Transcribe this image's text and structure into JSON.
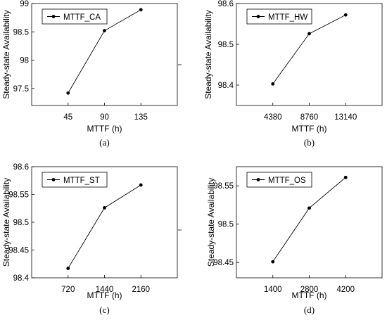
{
  "chart_data": [
    {
      "type": "line",
      "panel_label": "(a)",
      "x": [
        45,
        90,
        135
      ],
      "xticks": [
        "45",
        "90",
        "135"
      ],
      "series": [
        {
          "name": "MTTF_CA",
          "values": [
            97.42,
            98.52,
            98.89
          ]
        }
      ],
      "xlabel": "MTTF (h)",
      "ylabel": "Steady-state Availability",
      "yticks": [
        "97.5",
        "98",
        "98.5",
        "99"
      ],
      "ylim": [
        97.2,
        99.0
      ],
      "grid": false,
      "legend": "top-left"
    },
    {
      "type": "line",
      "panel_label": "(b)",
      "x": [
        4380,
        8760,
        13140
      ],
      "xticks": [
        "4380",
        "8760",
        "13140"
      ],
      "series": [
        {
          "name": "MTTF_HW",
          "values": [
            98.403,
            98.526,
            98.572
          ]
        }
      ],
      "xlabel": "MTTF (h)",
      "ylabel": "Steady-state Availability",
      "yticks": [
        "98.4",
        "98.5",
        "98.6"
      ],
      "ylim": [
        98.35,
        98.6
      ],
      "grid": false,
      "legend": "top-left"
    },
    {
      "type": "line",
      "panel_label": "(c)",
      "x": [
        720,
        1440,
        2160
      ],
      "xticks": [
        "720",
        "1440",
        "2160"
      ],
      "series": [
        {
          "name": "MTTF_ST",
          "values": [
            98.417,
            98.526,
            98.567
          ]
        }
      ],
      "xlabel": "MTTF (h)",
      "ylabel": "Steady-state Availability",
      "yticks": [
        "98.4",
        "98.45",
        "98.5",
        "98.55",
        "98.6"
      ],
      "ylim": [
        98.4,
        98.6
      ],
      "grid": false,
      "legend": "top-left"
    },
    {
      "type": "line",
      "panel_label": "(d)",
      "x": [
        1400,
        2800,
        4200
      ],
      "xticks": [
        "1400",
        "2800",
        "4200"
      ],
      "series": [
        {
          "name": "MTTF_OS",
          "values": [
            98.451,
            98.521,
            98.561
          ]
        }
      ],
      "xlabel": "MTTF (h)",
      "ylabel": "Steady-state Availability",
      "yticks": [
        "98.45",
        "98.5",
        "98.55"
      ],
      "ylim": [
        98.43,
        98.575
      ],
      "grid": false,
      "legend": "top-left"
    }
  ]
}
